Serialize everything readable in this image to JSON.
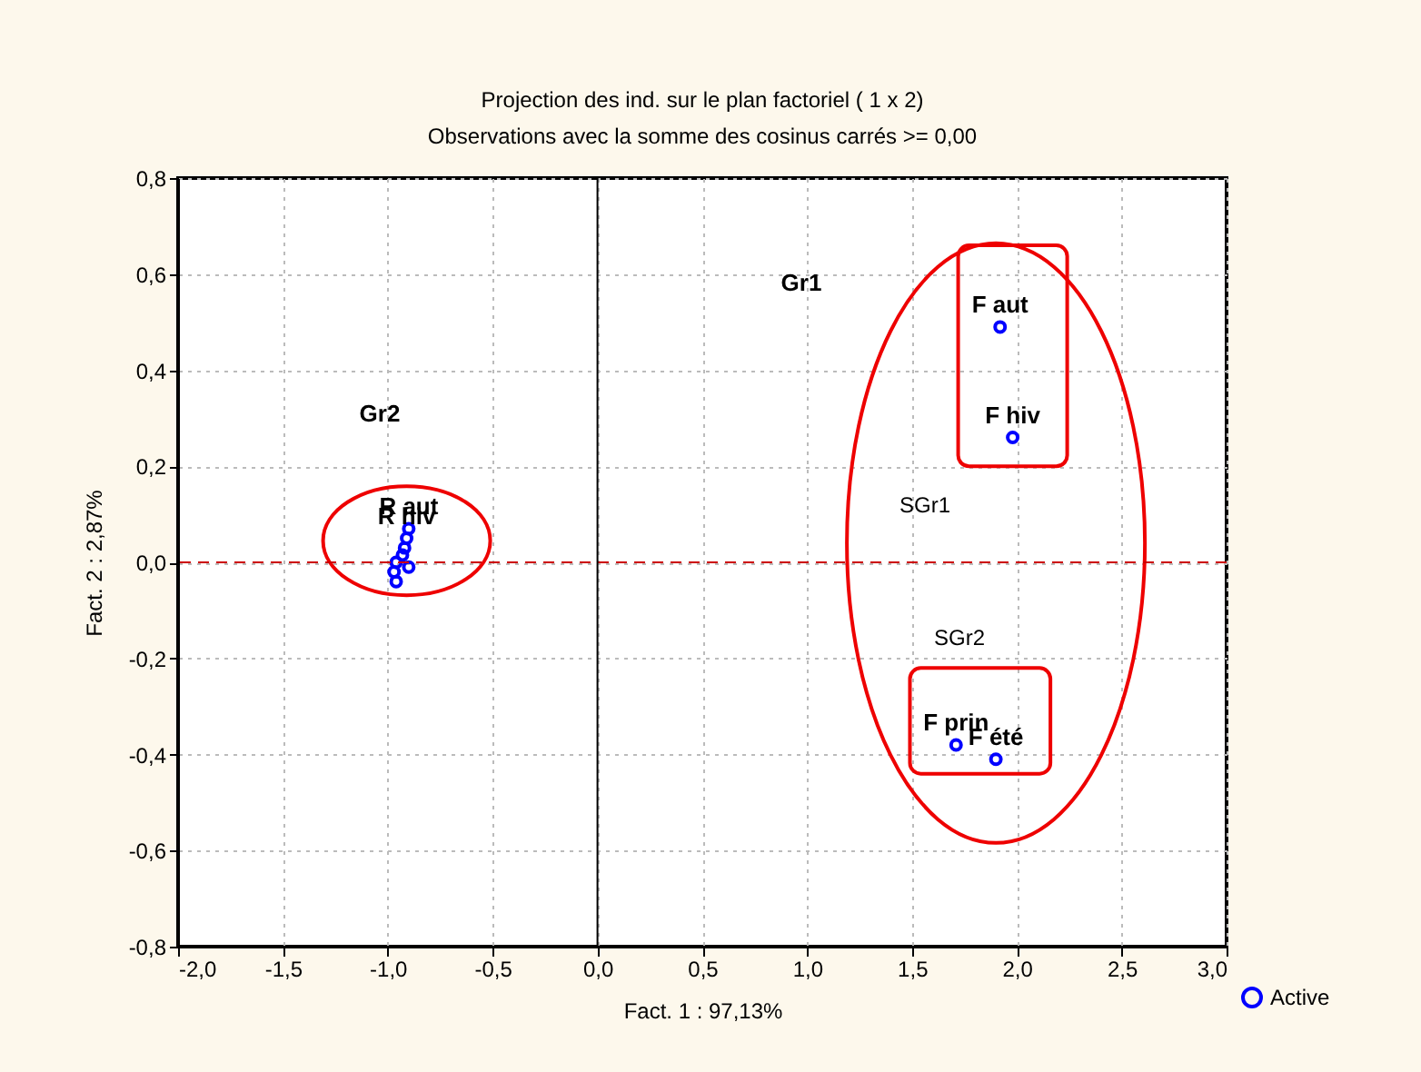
{
  "chart_data": {
    "type": "scatter",
    "title": "Projection des ind. sur le plan factoriel ( 1 x 2)",
    "subtitle": "Observations avec la somme des cosinus carrés >= 0,00",
    "xlabel": "Fact. 1 : 97,13%",
    "ylabel": "Fact. 2 : 2,87%",
    "series": [
      {
        "name": "Active",
        "color": "#0000ff",
        "x": [
          1.92,
          1.98,
          1.71,
          1.9,
          -0.9,
          -0.91,
          -0.92,
          -0.93,
          -0.96,
          -0.9,
          -0.97,
          -0.96
        ],
        "values": [
          0.49,
          0.26,
          -0.38,
          -0.41,
          0.07,
          0.05,
          0.03,
          0.015,
          0.0,
          -0.01,
          -0.02,
          -0.04
        ]
      }
    ],
    "marker": "circle",
    "xlim": [
      -2,
      3
    ],
    "ylim": [
      -0.8,
      0.8
    ],
    "xticks": [
      {
        "value": -2,
        "label": "-2,0"
      },
      {
        "value": -1.5,
        "label": "-1,5"
      },
      {
        "value": -1,
        "label": "-1,0"
      },
      {
        "value": -0.5,
        "label": "-0,5"
      },
      {
        "value": 0,
        "label": "0,0"
      },
      {
        "value": 0.5,
        "label": "0,5"
      },
      {
        "value": 1,
        "label": "1,0"
      },
      {
        "value": 1.5,
        "label": "1,5"
      },
      {
        "value": 2,
        "label": "2,0"
      },
      {
        "value": 2.5,
        "label": "2,5"
      },
      {
        "value": 3,
        "label": "3,0"
      }
    ],
    "yticks": [
      {
        "value": -0.8,
        "label": "-0,8"
      },
      {
        "value": -0.6,
        "label": "-0,6"
      },
      {
        "value": -0.4,
        "label": "-0,4"
      },
      {
        "value": -0.2,
        "label": "-0,2"
      },
      {
        "value": 0,
        "label": "0,0"
      },
      {
        "value": 0.2,
        "label": "0,2"
      },
      {
        "value": 0.4,
        "label": "0,4"
      },
      {
        "value": 0.6,
        "label": "0,6"
      },
      {
        "value": 0.8,
        "label": "0,8"
      }
    ],
    "ref_lines": [
      {
        "axis": "y",
        "value": 0,
        "color": "#cc0000",
        "line_style": "dashed"
      },
      {
        "axis": "x",
        "value": 0,
        "color": "#000000",
        "line_style": "solid"
      }
    ],
    "annotations": [
      {
        "text": "F aut",
        "x": 1.92,
        "y": 0.49
      },
      {
        "text": "F hiv",
        "x": 1.98,
        "y": 0.26
      },
      {
        "text": "F prin",
        "x": 1.71,
        "y": -0.38
      },
      {
        "text": "F été",
        "x": 1.9,
        "y": -0.41
      },
      {
        "text": "R aut",
        "x": -0.9,
        "y": 0.07
      },
      {
        "text": "R hiv",
        "x": -0.91,
        "y": 0.05
      },
      "Gr1",
      "Gr2",
      "SGr1",
      "SGr2"
    ],
    "grid": true,
    "legend": "bottom right"
  }
}
